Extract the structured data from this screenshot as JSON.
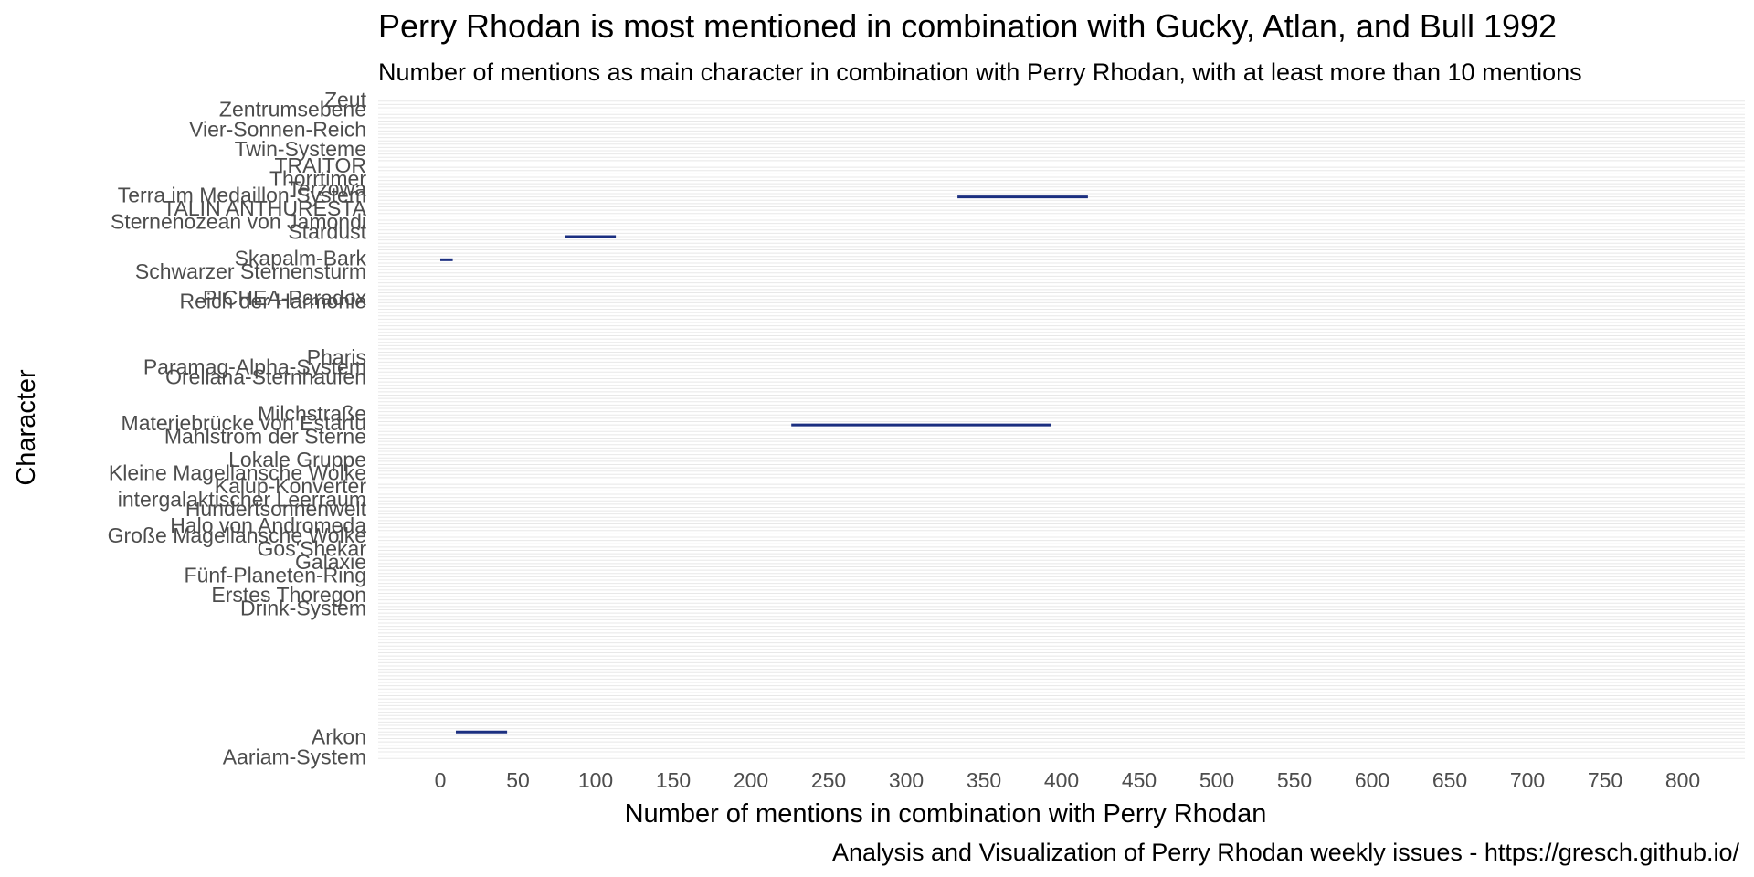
{
  "chart_data": {
    "type": "bar",
    "orientation": "horizontal",
    "title": "Perry Rhodan is most mentioned in combination with Gucky, Atlan, and Bull 1992",
    "subtitle": "Number of mentions as main character in combination with Perry Rhodan, with at least more than 10 mentions",
    "caption": "Analysis and Visualization of Perry Rhodan weekly issues - https://gresch.github.io/",
    "xlabel": "Number of mentions in combination with Perry Rhodan",
    "ylabel": "Character",
    "xlim": [
      -40,
      840
    ],
    "x_ticks": [
      0,
      50,
      100,
      150,
      200,
      250,
      300,
      350,
      400,
      450,
      500,
      550,
      600,
      650,
      700,
      750,
      800
    ],
    "grid": "horizontal major lines only",
    "category_count": 200,
    "visible_category_labels": [
      {
        "label": "Aariam-System",
        "row": 0
      },
      {
        "label": "Arkon",
        "row": 6
      },
      {
        "label": "Drink-System",
        "row": 45
      },
      {
        "label": "Erstes Thoregon",
        "row": 49
      },
      {
        "label": "Fünf-Planeten-Ring",
        "row": 55
      },
      {
        "label": "Galaxie",
        "row": 59
      },
      {
        "label": "Gos'Shekar",
        "row": 63
      },
      {
        "label": "Große Magellansche Wolke",
        "row": 67
      },
      {
        "label": "Halo von Andromeda",
        "row": 70
      },
      {
        "label": "Hundertsonnenwelt",
        "row": 75
      },
      {
        "label": "intergalaktischer Leerraum",
        "row": 78
      },
      {
        "label": "Kalup-Konverter",
        "row": 82
      },
      {
        "label": "Kleine Magellansche Wolke",
        "row": 86
      },
      {
        "label": "Lokale Gruppe",
        "row": 90
      },
      {
        "label": "Mahlstrom der Sterne",
        "row": 97
      },
      {
        "label": "Materiebrücke von Estartu",
        "row": 101
      },
      {
        "label": "Milchstraße",
        "row": 104
      },
      {
        "label": "Orellana-Sternhaufen",
        "row": 115
      },
      {
        "label": "Paramag-Alpha-System",
        "row": 118
      },
      {
        "label": "Pharis",
        "row": 121
      },
      {
        "label": "Reich der Harmonie",
        "row": 138
      },
      {
        "label": "PICHEA-Paradox",
        "row": 139
      },
      {
        "label": "Schwarzer Sternensturm",
        "row": 147
      },
      {
        "label": "Skapalm-Bark",
        "row": 151
      },
      {
        "label": "Stardust",
        "row": 159
      },
      {
        "label": "Sternenozean von Jamondi",
        "row": 162
      },
      {
        "label": "TALIN ANTHURESTA",
        "row": 166
      },
      {
        "label": "Terra im Medaillon-System",
        "row": 170
      },
      {
        "label": "Terzowa",
        "row": 172
      },
      {
        "label": "Thorrtimer",
        "row": 175
      },
      {
        "label": "TRAITOR",
        "row": 179
      },
      {
        "label": "Twin-Systeme",
        "row": 184
      },
      {
        "label": "Vier-Sonnen-Reich",
        "row": 190
      },
      {
        "label": "Zentrumsebene",
        "row": 196
      },
      {
        "label": "Zeut",
        "row": 199
      }
    ],
    "series": [
      {
        "values": [
          {
            "row": 8,
            "start": 10,
            "end": 43
          },
          {
            "row": 101,
            "start": 226,
            "end": 393
          },
          {
            "row": 151,
            "start": 0,
            "end": 8
          },
          {
            "row": 158,
            "start": 80,
            "end": 113
          },
          {
            "row": 170,
            "start": 333,
            "end": 417
          }
        ]
      }
    ],
    "colors": {
      "bar": "#1b2f80",
      "grid": "#e8e8e8",
      "axis_text": "#4d4d4d",
      "text": "#000000"
    }
  }
}
